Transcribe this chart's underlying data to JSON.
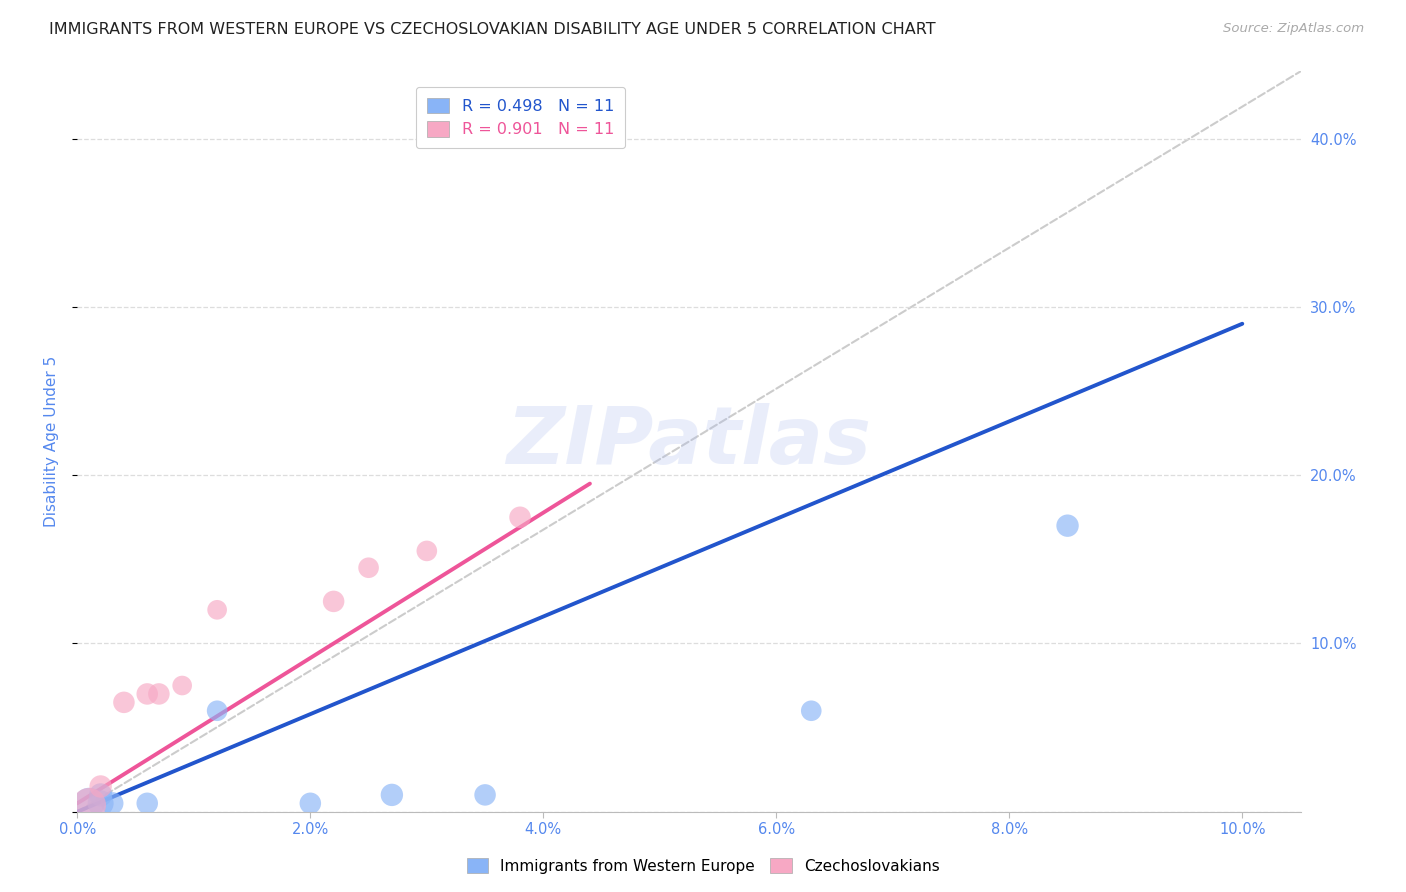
{
  "title": "IMMIGRANTS FROM WESTERN EUROPE VS CZECHOSLOVAKIAN DISABILITY AGE UNDER 5 CORRELATION CHART",
  "source": "Source: ZipAtlas.com",
  "ylabel": "Disability Age Under 5",
  "xlim": [
    0.0,
    0.105
  ],
  "ylim": [
    0.0,
    0.44
  ],
  "ytick_vals": [
    0.0,
    0.1,
    0.2,
    0.3,
    0.4
  ],
  "xtick_vals": [
    0.0,
    0.02,
    0.04,
    0.06,
    0.08,
    0.1
  ],
  "xtick_labels": [
    "0.0%",
    "2.0%",
    "4.0%",
    "6.0%",
    "8.0%",
    "10.0%"
  ],
  "blue_scatter_x": [
    0.001,
    0.002,
    0.002,
    0.003,
    0.006,
    0.012,
    0.02,
    0.027,
    0.035,
    0.063,
    0.085
  ],
  "blue_scatter_y": [
    0.005,
    0.005,
    0.01,
    0.005,
    0.005,
    0.06,
    0.005,
    0.01,
    0.01,
    0.06,
    0.17
  ],
  "blue_scatter_sizes": [
    500,
    350,
    280,
    260,
    240,
    220,
    240,
    260,
    240,
    220,
    260
  ],
  "pink_scatter_x": [
    0.001,
    0.002,
    0.004,
    0.006,
    0.007,
    0.009,
    0.012,
    0.022,
    0.025,
    0.03,
    0.038
  ],
  "pink_scatter_y": [
    0.004,
    0.015,
    0.065,
    0.07,
    0.07,
    0.075,
    0.12,
    0.125,
    0.145,
    0.155,
    0.175
  ],
  "pink_scatter_sizes": [
    600,
    260,
    240,
    240,
    240,
    200,
    200,
    240,
    220,
    220,
    240
  ],
  "blue_line_x": [
    0.0,
    0.1
  ],
  "blue_line_y": [
    0.0,
    0.29
  ],
  "pink_line_x": [
    0.0,
    0.044
  ],
  "pink_line_y": [
    0.005,
    0.195
  ],
  "diagonal_line_x": [
    0.0,
    0.105
  ],
  "diagonal_line_y": [
    0.0,
    0.44
  ],
  "R_blue": "0.498",
  "N_blue": "11",
  "R_pink": "0.901",
  "N_pink": "11",
  "blue_color": "#89b4f7",
  "pink_color": "#f7a8c4",
  "blue_line_color": "#2255cc",
  "pink_line_color": "#ee5599",
  "diagonal_color": "#cccccc",
  "title_fontsize": 11.5,
  "source_fontsize": 9.5,
  "axis_label_color": "#5588ee",
  "tick_label_color": "#5588ee",
  "background_color": "#ffffff",
  "watermark": "ZIPatlas",
  "legend_label_blue": "Immigrants from Western Europe",
  "legend_label_pink": "Czechoslovakians"
}
